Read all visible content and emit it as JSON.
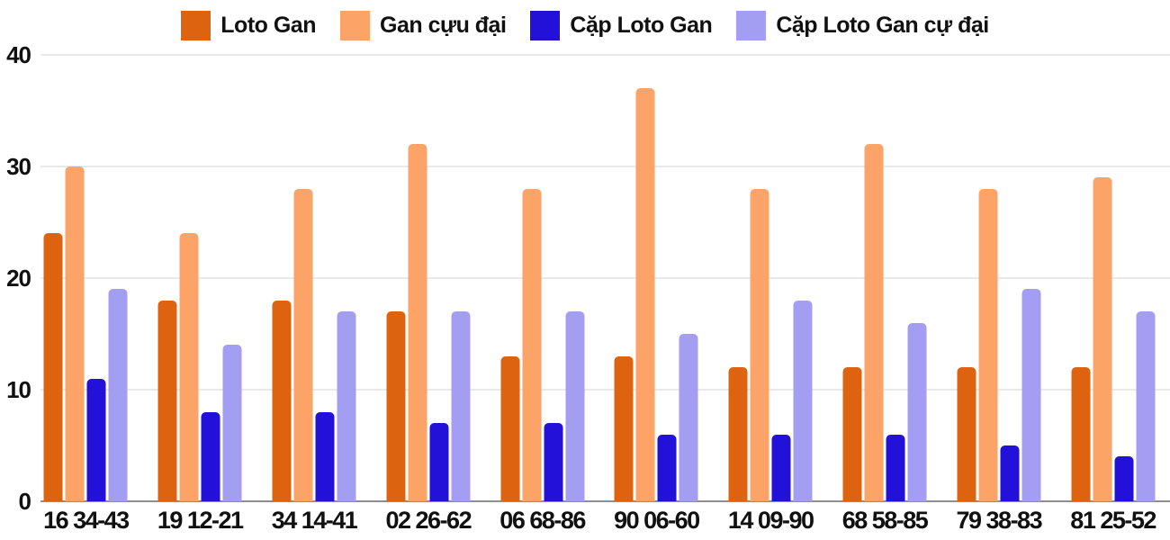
{
  "chart_data": {
    "type": "bar",
    "title": "",
    "xlabel": "",
    "ylabel": "",
    "categories": [
      "16 34-43",
      "19 12-21",
      "34 14-41",
      "02 26-62",
      "06 68-86",
      "90 06-60",
      "14 09-90",
      "68 58-85",
      "79 38-83",
      "81 25-52"
    ],
    "series": [
      {
        "name": "Loto Gan",
        "color": "#dd6311",
        "values": [
          24,
          18,
          18,
          17,
          13,
          13,
          12,
          12,
          12,
          12
        ]
      },
      {
        "name": "Gan cựu đại",
        "color": "#fca368",
        "values": [
          30,
          24,
          28,
          32,
          28,
          37,
          28,
          32,
          28,
          29
        ]
      },
      {
        "name": "Cặp Loto Gan",
        "color": "#2310d9",
        "values": [
          11,
          8,
          8,
          7,
          7,
          6,
          6,
          6,
          5,
          4
        ]
      },
      {
        "name": "Cặp Loto Gan cự đại",
        "color": "#a49ef3",
        "values": [
          19,
          14,
          17,
          17,
          17,
          15,
          18,
          16,
          19,
          17
        ]
      }
    ],
    "ylim": [
      0,
      40
    ],
    "yticks": [
      0,
      10,
      20,
      30,
      40
    ],
    "ytick_labels": [
      "0",
      "10",
      "20",
      "30",
      "40"
    ],
    "grid": true,
    "legend_position": "top",
    "colors": {
      "grid_line": "#e9e9e9",
      "axis_line": "#8f8f8f",
      "text": "#111111"
    }
  }
}
